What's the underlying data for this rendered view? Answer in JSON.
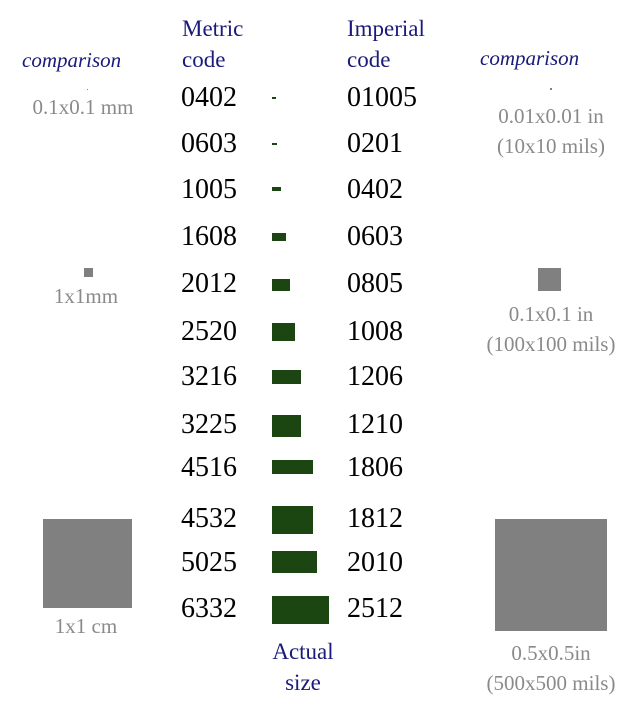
{
  "headers": {
    "metric": [
      "Metric",
      "code"
    ],
    "imperial": [
      "Imperial",
      "code"
    ],
    "actual_size": [
      "Actual",
      "size"
    ]
  },
  "comparison": {
    "left_label": "comparison",
    "right_label": "comparison",
    "left": [
      {
        "label": [
          "0.1x0.1 mm"
        ]
      },
      {
        "label": [
          "1x1mm"
        ]
      },
      {
        "label": [
          "1x1 cm"
        ]
      }
    ],
    "right": [
      {
        "label": [
          "0.01x0.01 in",
          "(10x10 mils)"
        ]
      },
      {
        "label": [
          "0.1x0.1 in",
          "(100x100 mils)"
        ]
      },
      {
        "label": [
          "0.5x0.5in",
          "(500x500 mils)"
        ]
      }
    ]
  },
  "packages": [
    {
      "metric": "0402",
      "imperial": "01005",
      "length_mm": 0.4,
      "width_mm": 0.2
    },
    {
      "metric": "0603",
      "imperial": "0201",
      "length_mm": 0.6,
      "width_mm": 0.3
    },
    {
      "metric": "1005",
      "imperial": "0402",
      "length_mm": 1.0,
      "width_mm": 0.5
    },
    {
      "metric": "1608",
      "imperial": "0603",
      "length_mm": 1.6,
      "width_mm": 0.8
    },
    {
      "metric": "2012",
      "imperial": "0805",
      "length_mm": 2.0,
      "width_mm": 1.25
    },
    {
      "metric": "2520",
      "imperial": "1008",
      "length_mm": 2.5,
      "width_mm": 2.0
    },
    {
      "metric": "3216",
      "imperial": "1206",
      "length_mm": 3.2,
      "width_mm": 1.6
    },
    {
      "metric": "3225",
      "imperial": "1210",
      "length_mm": 3.2,
      "width_mm": 2.5
    },
    {
      "metric": "4516",
      "imperial": "1806",
      "length_mm": 4.5,
      "width_mm": 1.6
    },
    {
      "metric": "4532",
      "imperial": "1812",
      "length_mm": 4.5,
      "width_mm": 3.2
    },
    {
      "metric": "5025",
      "imperial": "2010",
      "length_mm": 5.0,
      "width_mm": 2.5
    },
    {
      "metric": "6332",
      "imperial": "2512",
      "length_mm": 6.3,
      "width_mm": 3.2
    }
  ],
  "colors": {
    "header_text": "#1a1a7a",
    "package_fill": "#1b4511",
    "comparison_fill": "#808080",
    "comparison_text": "#8a8a8a"
  }
}
